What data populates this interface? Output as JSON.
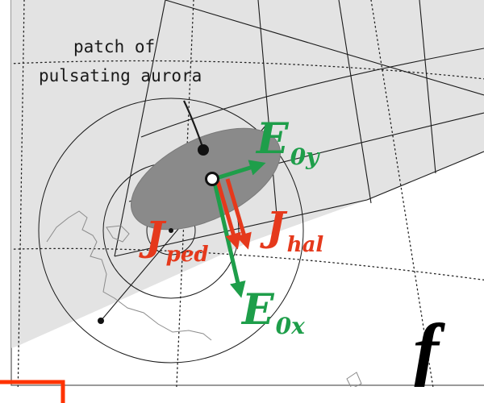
{
  "annotation": {
    "line1": "patch of",
    "line2": "pulsating aurora"
  },
  "vectors": {
    "e0y": {
      "main": "E",
      "sub": "0y"
    },
    "e0x": {
      "main": "E",
      "sub": "0x"
    },
    "jped": {
      "main": "J",
      "sub": "ped"
    },
    "jhal": {
      "main": "J",
      "sub": "hal"
    }
  },
  "panel_label": "f",
  "colors": {
    "efield": "#1e9e4a",
    "current": "#e5391c",
    "aurora_patch": "#8a8a8a",
    "auroral_oval": "#e3e3e3",
    "frame_corner": "#ff3300",
    "coastline": "#8c8c8c"
  }
}
